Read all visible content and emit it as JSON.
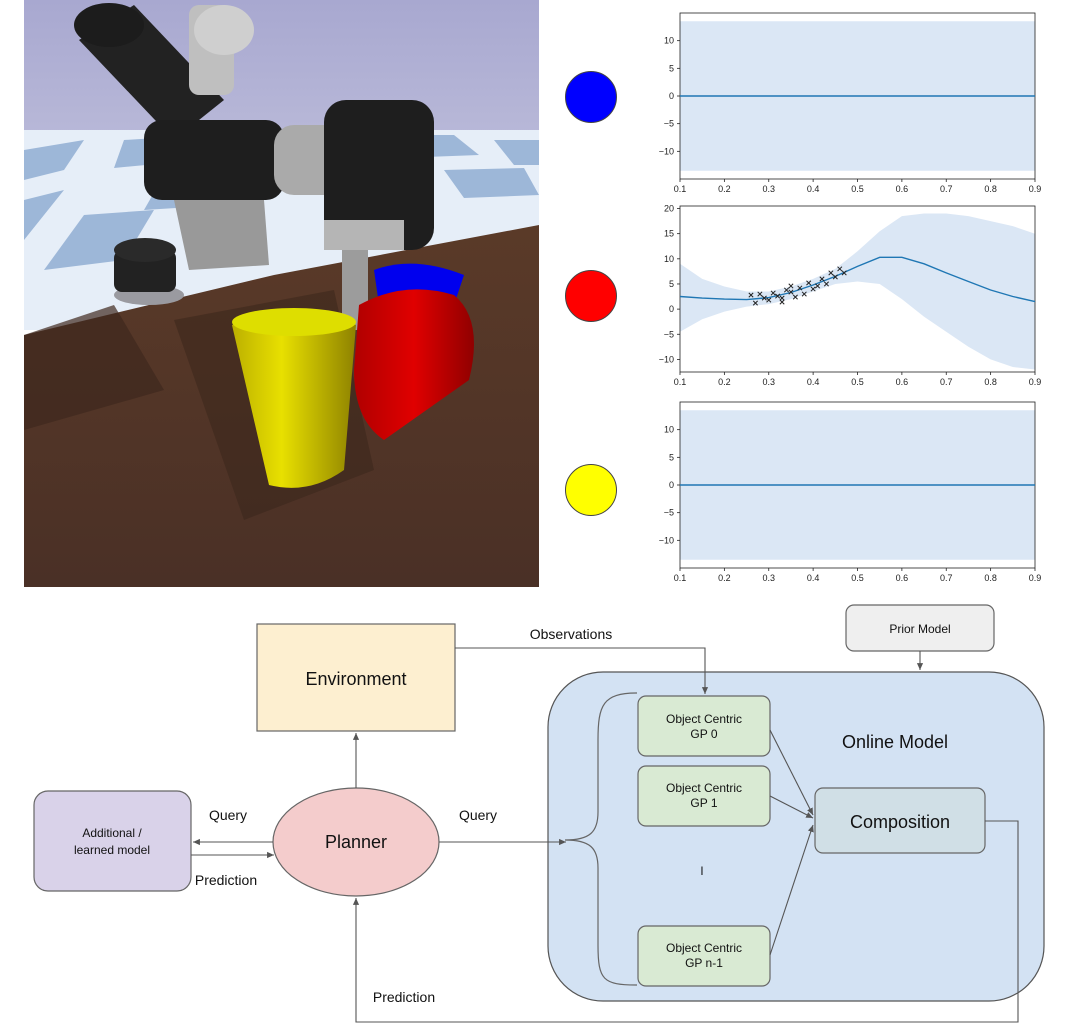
{
  "colors": {
    "blue_object": "#0000ff",
    "red_object": "#ff0000",
    "yellow_object": "#ffff00",
    "line": "#1f77b4",
    "band": "#dbe7f5"
  },
  "chart_data": [
    {
      "type": "line",
      "object": "blue",
      "x": [
        0.1,
        0.9
      ],
      "series": [
        {
          "values": [
            0,
            0
          ]
        }
      ],
      "band": {
        "upper": [
          13.5,
          13.5
        ],
        "lower": [
          -13.5,
          -13.5
        ]
      },
      "xlim": [
        0.1,
        0.9
      ],
      "ylim": [
        -15,
        15
      ],
      "xticks": [
        "0.1",
        "0.2",
        "0.3",
        "0.4",
        "0.5",
        "0.6",
        "0.7",
        "0.8",
        "0.9"
      ],
      "yticks": [
        "10",
        "5",
        "0",
        "−5",
        "−10"
      ],
      "ytick_values": [
        10,
        5,
        0,
        -5,
        -10
      ],
      "title": "",
      "xlabel": "",
      "ylabel": ""
    },
    {
      "type": "line",
      "object": "red",
      "x": [
        0.1,
        0.15,
        0.2,
        0.25,
        0.3,
        0.35,
        0.4,
        0.45,
        0.5,
        0.55,
        0.6,
        0.65,
        0.7,
        0.75,
        0.8,
        0.85,
        0.9
      ],
      "series": [
        {
          "values": [
            2.5,
            2.2,
            2.0,
            1.9,
            2.3,
            3.3,
            4.8,
            6.5,
            8.5,
            10.3,
            10.3,
            9.0,
            7.2,
            5.5,
            3.8,
            2.5,
            1.5
          ]
        }
      ],
      "band": {
        "upper": [
          9.0,
          6.0,
          4.5,
          3.5,
          3.5,
          4.5,
          6.0,
          8.0,
          11.5,
          15.5,
          18.5,
          19.0,
          19.0,
          18.5,
          17.5,
          16.5,
          15.0
        ],
        "lower": [
          -4.5,
          -2.0,
          -0.5,
          0.5,
          1.0,
          2.0,
          3.5,
          5.0,
          5.5,
          5.0,
          2.0,
          -1.5,
          -4.5,
          -7.5,
          -10.0,
          -11.5,
          -12.0
        ]
      },
      "points": [
        [
          0.26,
          2.8
        ],
        [
          0.27,
          1.2
        ],
        [
          0.28,
          3.0
        ],
        [
          0.29,
          2.2
        ],
        [
          0.3,
          1.8
        ],
        [
          0.31,
          3.2
        ],
        [
          0.32,
          2.6
        ],
        [
          0.33,
          1.4
        ],
        [
          0.34,
          3.8
        ],
        [
          0.35,
          3.4
        ],
        [
          0.36,
          2.4
        ],
        [
          0.37,
          4.2
        ],
        [
          0.38,
          3.0
        ],
        [
          0.39,
          5.2
        ],
        [
          0.4,
          4.0
        ],
        [
          0.41,
          4.6
        ],
        [
          0.42,
          6.0
        ],
        [
          0.43,
          5.0
        ],
        [
          0.44,
          7.2
        ],
        [
          0.45,
          6.4
        ],
        [
          0.46,
          8.0
        ],
        [
          0.47,
          7.2
        ],
        [
          0.35,
          4.6
        ],
        [
          0.33,
          2.2
        ]
      ],
      "xlim": [
        0.1,
        0.9
      ],
      "ylim": [
        -12.5,
        20.5
      ],
      "xticks": [
        "0.1",
        "0.2",
        "0.3",
        "0.4",
        "0.5",
        "0.6",
        "0.7",
        "0.8",
        "0.9"
      ],
      "yticks": [
        "20",
        "15",
        "10",
        "5",
        "0",
        "−5",
        "−10"
      ],
      "ytick_values": [
        20,
        15,
        10,
        5,
        0,
        -5,
        -10
      ],
      "title": "",
      "xlabel": "",
      "ylabel": ""
    },
    {
      "type": "line",
      "object": "yellow",
      "x": [
        0.1,
        0.9
      ],
      "series": [
        {
          "values": [
            0,
            0
          ]
        }
      ],
      "band": {
        "upper": [
          13.5,
          13.5
        ],
        "lower": [
          -13.5,
          -13.5
        ]
      },
      "xlim": [
        0.1,
        0.9
      ],
      "ylim": [
        -15,
        15
      ],
      "xticks": [
        "0.1",
        "0.2",
        "0.3",
        "0.4",
        "0.5",
        "0.6",
        "0.7",
        "0.8",
        "0.9"
      ],
      "yticks": [
        "10",
        "5",
        "0",
        "−5",
        "−10"
      ],
      "ytick_values": [
        10,
        5,
        0,
        -5,
        -10
      ],
      "title": "",
      "xlabel": "",
      "ylabel": ""
    }
  ],
  "diagram": {
    "environment": "Environment",
    "prior_model": "Prior Model",
    "online_model": "Online Model",
    "composition": "Composition",
    "planner": "Planner",
    "additional_model": [
      "Additional /",
      "learned model"
    ],
    "gp0": [
      "Object Centric",
      "GP 0"
    ],
    "gp1": [
      "Object Centric",
      "GP 1"
    ],
    "gpn": [
      "Object Centric",
      "GP n-1"
    ],
    "ellipsis": "l",
    "observations": "Observations",
    "query_left": "Query",
    "query_right": "Query",
    "prediction_left": "Prediction",
    "prediction_bottom": "Prediction"
  }
}
